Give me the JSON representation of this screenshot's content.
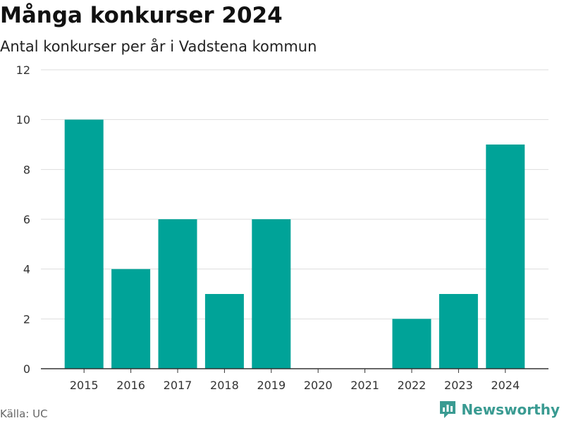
{
  "title": "Många konkurser 2024",
  "subtitle": "Antal konkurser per år i Vadstena kommun",
  "source": "Källa: UC",
  "brand": "Newsworthy",
  "colors": {
    "bar": "#00a398",
    "grid": "#dddddd",
    "axis": "#333333",
    "brand": "#3a9b92"
  },
  "chart_data": {
    "type": "bar",
    "title": "Många konkurser 2024",
    "subtitle": "Antal konkurser per år i Vadstena kommun",
    "categories": [
      "2015",
      "2016",
      "2017",
      "2018",
      "2019",
      "2020",
      "2021",
      "2022",
      "2023",
      "2024"
    ],
    "values": [
      10,
      4,
      6,
      3,
      6,
      0,
      0,
      2,
      3,
      9
    ],
    "ylim": [
      0,
      12
    ],
    "yticks": [
      0,
      2,
      4,
      6,
      8,
      10,
      12
    ],
    "grid": true,
    "legend": "none"
  }
}
